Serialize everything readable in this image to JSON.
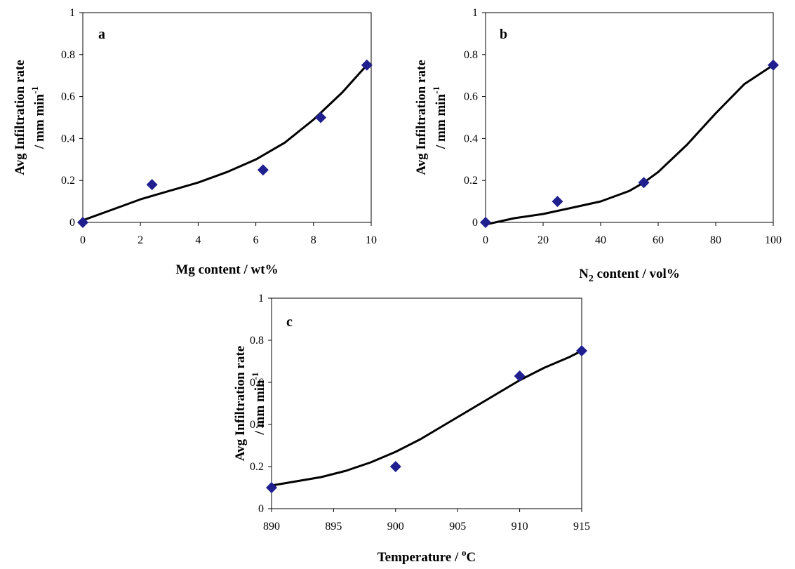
{
  "colors": {
    "marker": "#1f1f8f",
    "curve": "#000000"
  },
  "chart_data": [
    {
      "type": "scatter",
      "panel_label": "a",
      "xlabel": "Mg content / wt%",
      "ylabel_line1": "Avg Infiltration rate",
      "ylabel_line2": "/ mm min",
      "ylabel_sup": "-1",
      "xlim": [
        0,
        10
      ],
      "ylim": [
        0,
        1
      ],
      "xticks": [
        "0",
        "2",
        "4",
        "6",
        "8",
        "10"
      ],
      "yticks": [
        "0",
        "0.2",
        "0.4",
        "0.6",
        "0.8",
        "1"
      ],
      "x": [
        0,
        2.4,
        6.25,
        8.25,
        9.85
      ],
      "y": [
        0,
        0.18,
        0.25,
        0.5,
        0.75
      ],
      "trend_x": [
        0,
        1,
        2,
        3,
        4,
        5,
        6,
        7,
        8,
        9,
        9.85
      ],
      "trend_y": [
        0.01,
        0.06,
        0.11,
        0.15,
        0.19,
        0.24,
        0.3,
        0.38,
        0.49,
        0.62,
        0.75
      ]
    },
    {
      "type": "scatter",
      "panel_label": "b",
      "xlabel_pre": "N",
      "xlabel_sub": "2",
      "xlabel_post": " content / vol%",
      "ylabel_line1": "Avg Infiltration rate",
      "ylabel_line2": "/ mm min",
      "ylabel_sup": "-1",
      "xlim": [
        0,
        100
      ],
      "ylim": [
        0,
        1
      ],
      "xticks": [
        "0",
        "20",
        "40",
        "60",
        "80",
        "100"
      ],
      "yticks": [
        "0",
        "0.2",
        "0.4",
        "0.6",
        "0.8",
        "1"
      ],
      "x": [
        0,
        25,
        55,
        100
      ],
      "y": [
        0,
        0.1,
        0.19,
        0.75
      ],
      "trend_x": [
        0,
        10,
        20,
        30,
        40,
        50,
        55,
        60,
        70,
        80,
        90,
        100
      ],
      "trend_y": [
        -0.01,
        0.02,
        0.04,
        0.07,
        0.1,
        0.15,
        0.19,
        0.24,
        0.37,
        0.52,
        0.66,
        0.75
      ]
    },
    {
      "type": "scatter",
      "panel_label": "c",
      "xlabel_pre": "Temperature / ",
      "xlabel_sup": "o",
      "xlabel_post": "C",
      "ylabel_line1": "Avg Infiltration rate",
      "ylabel_line2": "/ mm min",
      "ylabel_sup": "-1",
      "xlim": [
        890,
        915
      ],
      "ylim": [
        0,
        1
      ],
      "xticks": [
        "890",
        "895",
        "900",
        "905",
        "910",
        "915"
      ],
      "yticks": [
        "0",
        "0.2",
        "0.4",
        "0.6",
        "0.8",
        "1"
      ],
      "x": [
        890,
        900,
        910,
        915
      ],
      "y": [
        0.1,
        0.2,
        0.63,
        0.75
      ],
      "trend_x": [
        890,
        892,
        894,
        896,
        898,
        900,
        902,
        904,
        906,
        908,
        910,
        912,
        914,
        915
      ],
      "trend_y": [
        0.11,
        0.13,
        0.15,
        0.18,
        0.22,
        0.27,
        0.33,
        0.4,
        0.47,
        0.54,
        0.61,
        0.67,
        0.72,
        0.75
      ]
    }
  ]
}
